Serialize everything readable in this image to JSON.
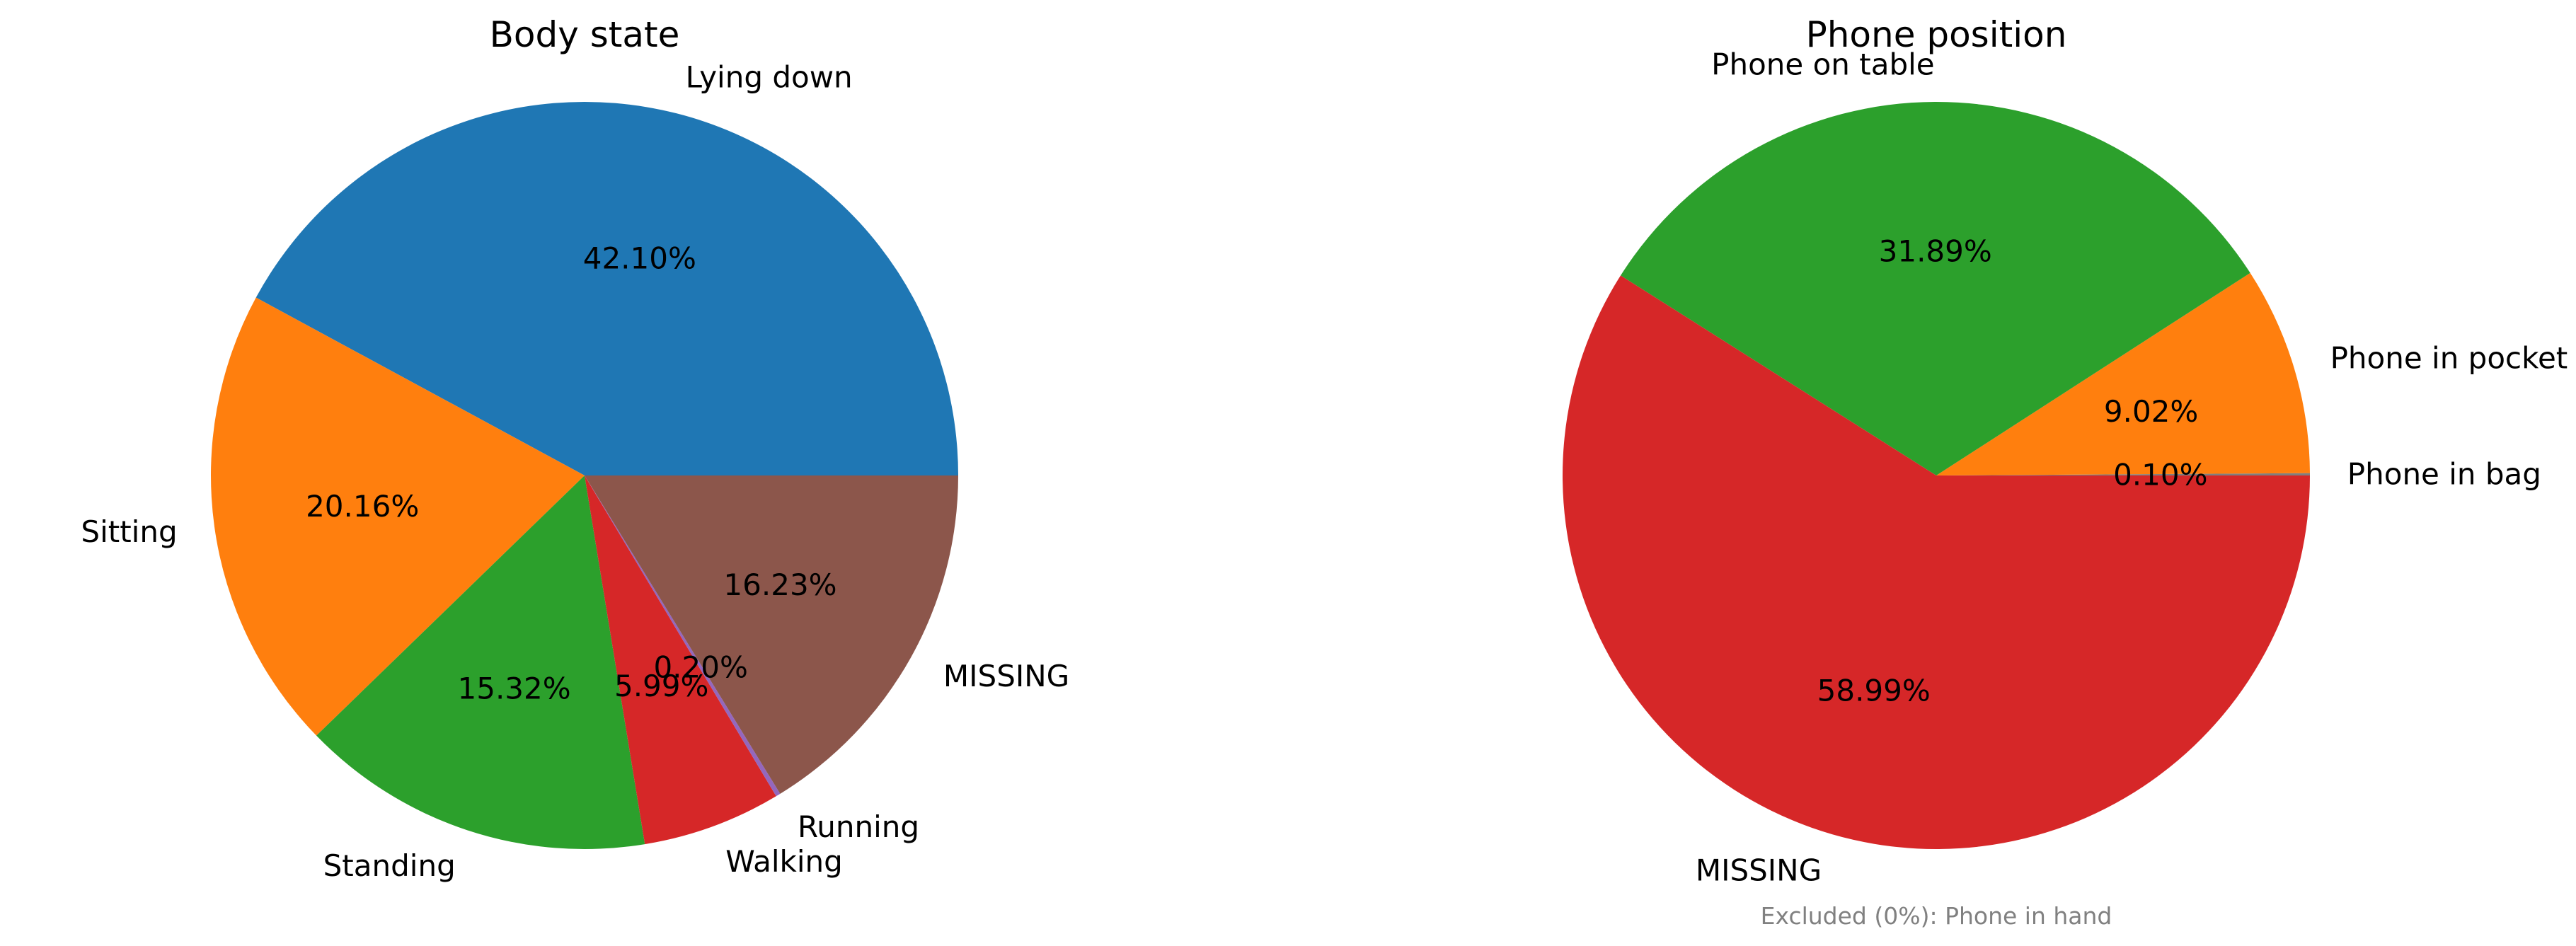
{
  "chart_data": [
    {
      "type": "pie",
      "title": "Body state",
      "labels": [
        "Lying down",
        "Sitting",
        "Standing",
        "Walking",
        "Running",
        "MISSING"
      ],
      "values": [
        42.1,
        20.16,
        15.32,
        5.99,
        0.2,
        16.23
      ],
      "value_labels": [
        "42.10%",
        "20.16%",
        "15.32%",
        "5.99%",
        "0.20%",
        "16.23%"
      ],
      "colors": [
        "#1f77b4",
        "#ff7f0e",
        "#2ca02c",
        "#d62728",
        "#9467bd",
        "#8c564b"
      ],
      "start_angle_deg": 0,
      "direction": "counterclockwise"
    },
    {
      "type": "pie",
      "title": "Phone position",
      "labels": [
        "Phone in bag",
        "Phone in pocket",
        "Phone on table",
        "MISSING"
      ],
      "values": [
        0.1,
        9.02,
        31.89,
        58.99
      ],
      "value_labels": [
        "0.10%",
        "9.02%",
        "31.89%",
        "58.99%"
      ],
      "colors": [
        "#7f7f7f",
        "#ff7f0e",
        "#2ca02c",
        "#d62728"
      ],
      "start_angle_deg": 0,
      "direction": "counterclockwise",
      "footnote": "Excluded (0%): Phone in hand"
    }
  ]
}
